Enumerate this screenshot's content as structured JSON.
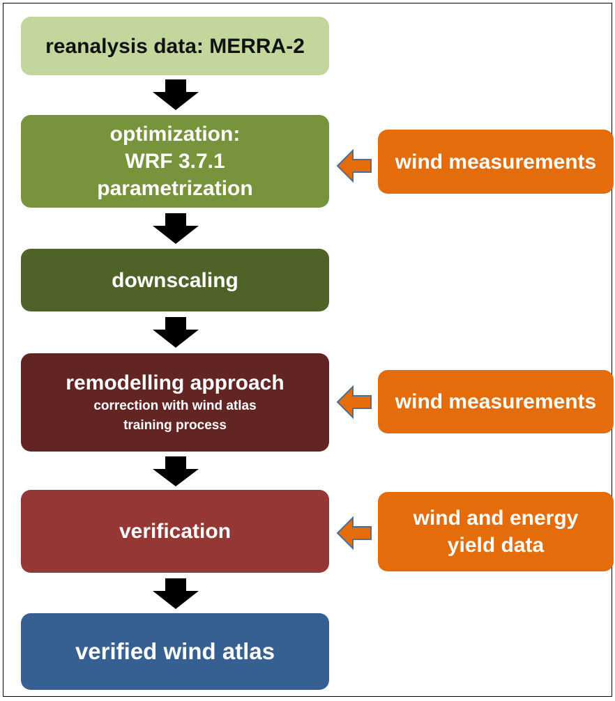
{
  "nodes": [
    {
      "lines": [
        "reanalysis data: MERRA-2"
      ]
    },
    {
      "lines": [
        "optimization:",
        "WRF 3.7.1",
        "parametrization"
      ]
    },
    {
      "lines": [
        "downscaling"
      ]
    },
    {
      "lines": [
        "remodelling approach"
      ],
      "sublines": [
        "correction with wind atlas",
        "training process"
      ]
    },
    {
      "lines": [
        "verification"
      ]
    },
    {
      "lines": [
        "verified wind atlas"
      ]
    }
  ],
  "inputs": [
    {
      "lines": [
        "wind measurements"
      ]
    },
    {
      "lines": [
        "wind measurements"
      ]
    },
    {
      "lines": [
        "wind and energy",
        "yield data"
      ]
    }
  ]
}
